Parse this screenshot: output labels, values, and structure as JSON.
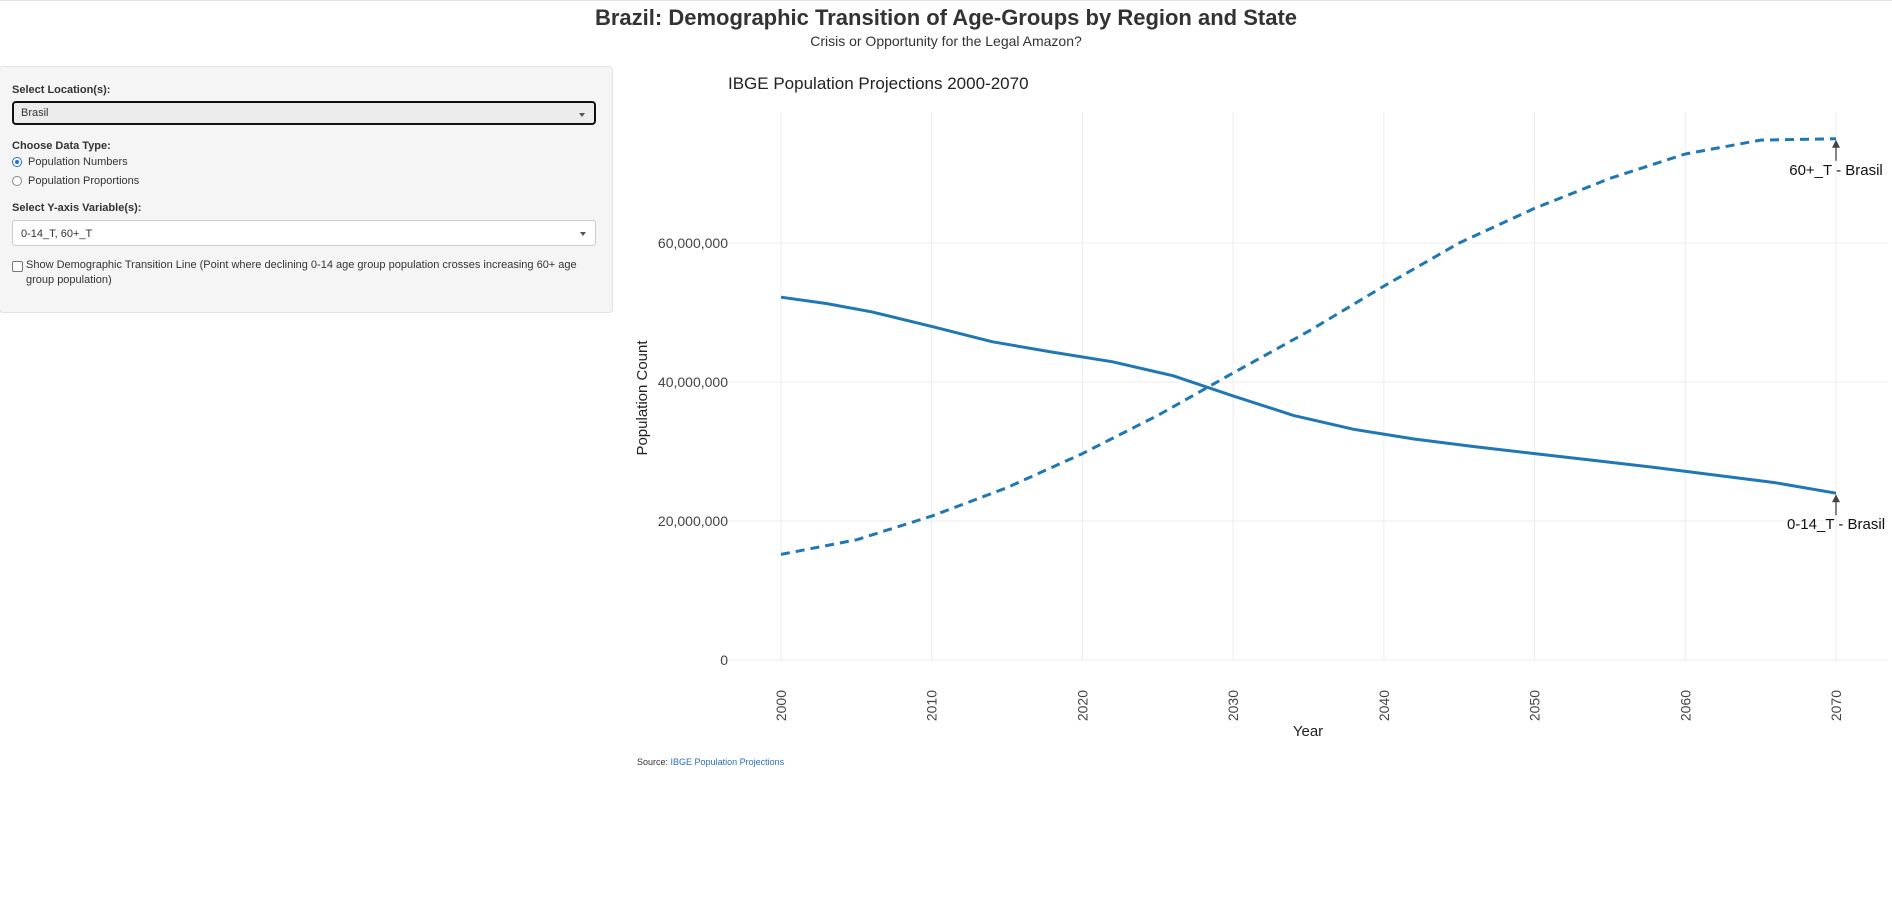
{
  "header": {
    "title": "Brazil: Demographic Transition of Age-Groups by Region and State",
    "subtitle": "Crisis or Opportunity for the Legal Amazon?"
  },
  "sidebar": {
    "location_label": "Select Location(s):",
    "location_value": "Brasil",
    "data_type_label": "Choose Data Type:",
    "radio_numbers": "Population Numbers",
    "radio_proportions": "Population Proportions",
    "selected_data_type": "Population Numbers",
    "yvar_label": "Select Y-axis Variable(s):",
    "yvar_value": "0-14_T, 60+_T",
    "transition_checkbox_label": "Show Demographic Transition Line (Point where declining 0-14 age group population crosses increasing 60+ age group population)",
    "transition_checked": false
  },
  "source": {
    "prefix": "Source:",
    "link_text": "IBGE Population Projections"
  },
  "colors": {
    "series": "#1f77b4",
    "accent": "#1e6fd9"
  },
  "chart_data": {
    "type": "line",
    "title": "IBGE Population Projections 2000-2070",
    "xlabel": "Year",
    "ylabel": "Population Count",
    "xlim": [
      2000,
      2070
    ],
    "ylim": [
      0,
      75000000
    ],
    "xticks": [
      2000,
      2010,
      2020,
      2030,
      2040,
      2050,
      2060,
      2070
    ],
    "yticks": [
      0,
      20000000,
      40000000,
      60000000
    ],
    "ytick_labels": [
      "0",
      "20,000,000",
      "40,000,000",
      "60,000,000"
    ],
    "grid": true,
    "series": [
      {
        "annotation": "0-14_T - Brasil",
        "dash": "solid",
        "x": [
          2000,
          2003,
          2006,
          2010,
          2014,
          2018,
          2022,
          2026,
          2030,
          2034,
          2038,
          2042,
          2046,
          2050,
          2054,
          2058,
          2062,
          2066,
          2070
        ],
        "y": [
          52200000,
          51300000,
          50100000,
          48000000,
          45800000,
          44300000,
          42900000,
          40900000,
          38000000,
          35200000,
          33200000,
          31800000,
          30700000,
          29700000,
          28700000,
          27700000,
          26600000,
          25500000,
          24000000
        ]
      },
      {
        "annotation": "60+_T - Brasil",
        "dash": "dashed",
        "x": [
          2000,
          2005,
          2010,
          2015,
          2020,
          2025,
          2030,
          2035,
          2040,
          2045,
          2050,
          2055,
          2060,
          2065,
          2070
        ],
        "y": [
          15200000,
          17300000,
          20700000,
          24800000,
          29700000,
          35200000,
          41300000,
          47300000,
          53800000,
          60000000,
          65000000,
          69300000,
          72800000,
          74800000,
          75000000
        ]
      }
    ]
  }
}
